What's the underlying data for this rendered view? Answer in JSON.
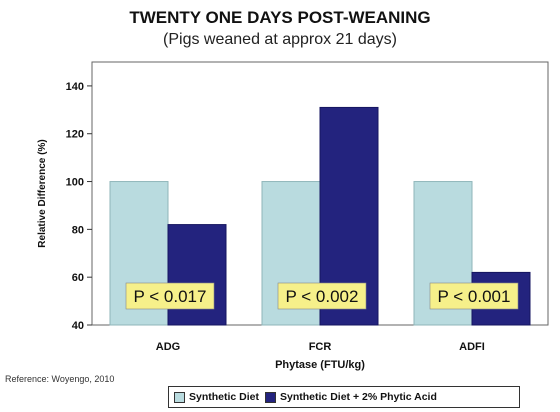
{
  "chart_data": {
    "type": "bar",
    "title": "TWENTY ONE DAYS POST-WEANING",
    "subtitle": "(Pigs weaned at approx 21 days)",
    "xlabel": "Phytase (FTU/kg)",
    "ylabel": "Relative Difference (%)",
    "ylim": [
      40,
      150
    ],
    "yticks": [
      "40",
      "60",
      "80",
      "100",
      "120",
      "140"
    ],
    "categories": [
      "ADG",
      "FCR",
      "ADFI"
    ],
    "series": [
      {
        "name": "Synthetic Diet",
        "color": "#b9dbdf",
        "values": [
          100,
          100,
          100
        ]
      },
      {
        "name": "Synthetic Diet + 2% Phytic Acid",
        "color": "#23237e",
        "values": [
          82,
          131,
          62
        ]
      }
    ],
    "annotations": [
      "P < 0.017",
      "P < 0.002",
      "P < 0.001"
    ],
    "annotation_color": "#f6f08a",
    "grid": false,
    "legend": "bottom"
  },
  "reference": "Reference: Woyengo, 2010"
}
